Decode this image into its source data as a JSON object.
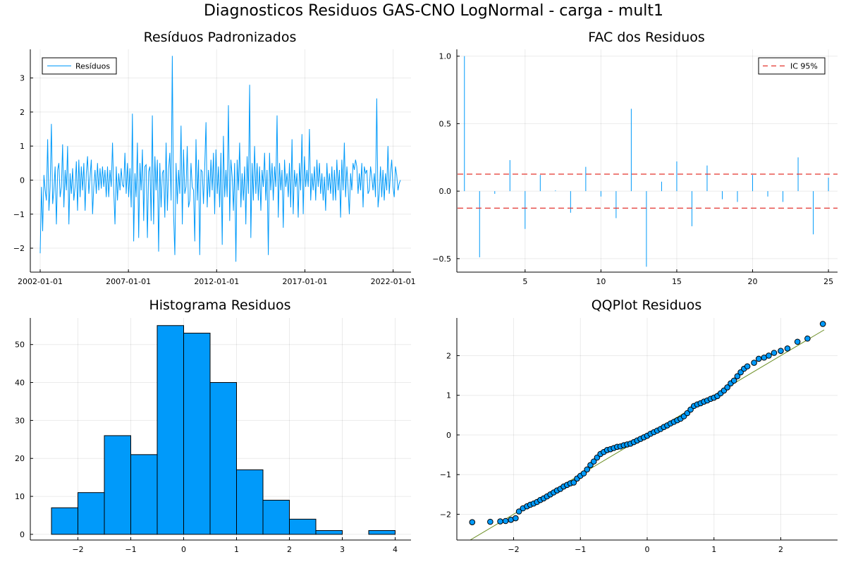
{
  "figure": {
    "suptitle": "Diagnosticos Residuos  GAS-CNO LogNormal - carga - mult1"
  },
  "colors": {
    "primary": "#009AFA",
    "ci": "#E26F46",
    "qqline": "#6B8E23",
    "ci_line": "#E3342F"
  },
  "chart_data": [
    {
      "type": "line",
      "title": "Resíduos Padronizados",
      "legend": {
        "entries": [
          "Resíduos"
        ],
        "placement": "top-left"
      },
      "x_ticks": [
        "2002-01-01",
        "2007-01-01",
        "2012-01-01",
        "2017-01-01",
        "2022-01-01"
      ],
      "x_range": [
        "2002-01-01",
        "2022-06-01"
      ],
      "ylim": [
        -2.6,
        3.8
      ],
      "y_ticks": [
        -2,
        -1,
        0,
        1,
        2,
        3
      ],
      "series": [
        {
          "name": "Resíduos",
          "values": [
            -2.15,
            -0.2,
            -1.5,
            0.15,
            -0.3,
            -0.6,
            1.2,
            -0.9,
            -0.2,
            1.65,
            -0.7,
            -0.3,
            0.4,
            -1.3,
            0.3,
            0.5,
            -0.5,
            -0.2,
            1.05,
            -0.8,
            0.3,
            -0.3,
            1.0,
            -1.3,
            0.2,
            -0.4,
            0.35,
            -0.6,
            -0.2,
            0.55,
            -0.9,
            0.6,
            -0.5,
            0.4,
            -0.3,
            0.5,
            -0.9,
            0.2,
            0.7,
            -0.4,
            0.1,
            0.6,
            -1.0,
            -0.2,
            0.3,
            -0.4,
            0.5,
            -0.3,
            0.35,
            -0.25,
            0.4,
            -0.2,
            0.3,
            -0.5,
            0.4,
            -0.5,
            0.3,
            -0.2,
            1.1,
            -0.3,
            -1.3,
            0.4,
            -0.6,
            0.2,
            -0.3,
            0.35,
            -0.15,
            -0.2,
            0.8,
            -0.4,
            0.5,
            -0.5,
            0.35,
            -0.8,
            1.95,
            -1.8,
            0.2,
            -0.5,
            1.1,
            -1.7,
            0.5,
            -0.3,
            0.9,
            -1.2,
            0.4,
            0.45,
            -1.7,
            0.25,
            0.4,
            -1.2,
            1.9,
            -1.3,
            0.7,
            -0.3,
            0.6,
            -2.1,
            0.5,
            -0.8,
            0.2,
            0.3,
            -1.1,
            1.1,
            -0.9,
            0.3,
            0.8,
            -0.6,
            3.65,
            -1.0,
            -2.2,
            0.5,
            -0.7,
            0.3,
            -0.4,
            1.6,
            -1.3,
            0.9,
            -0.4,
            -0.2,
            1.0,
            -0.8,
            -0.6,
            0.5,
            -0.2,
            -0.3,
            -1.8,
            1.2,
            -0.6,
            0.6,
            -2.2,
            0.3,
            0.25,
            -0.7,
            0.4,
            1.7,
            -0.8,
            0.3,
            -0.5,
            0.6,
            -0.3,
            0.8,
            -1.0,
            0.9,
            -0.4,
            0.4,
            -0.8,
            0.8,
            -1.9,
            1.3,
            -0.5,
            0.3,
            -0.5,
            2.2,
            -1.2,
            0.6,
            0.1,
            -0.9,
            0.5,
            -2.4,
            0.6,
            -0.3,
            1.1,
            -0.8,
            0.2,
            -0.6,
            0.4,
            -1.3,
            0.7,
            -0.4,
            2.8,
            -1.7,
            0.5,
            -0.6,
            1.0,
            -0.4,
            0.5,
            -0.6,
            0.4,
            -0.9,
            0.3,
            -0.2,
            0.8,
            -0.6,
            0.3,
            -2.2,
            0.8,
            -0.3,
            0.5,
            -0.6,
            0.4,
            -0.2,
            1.9,
            -1.1,
            0.5,
            -0.3,
            0.3,
            -1.4,
            0.6,
            -0.2,
            0.2,
            -0.5,
            0.5,
            -0.8,
            1.2,
            -1.0,
            0.3,
            -0.2,
            0.2,
            -1.1,
            0.5,
            -0.3,
            1.35,
            -1.0,
            0.7,
            -0.2,
            0.3,
            -0.2,
            1.5,
            -0.6,
            0.2,
            -0.3,
            0.4,
            -0.6,
            0.6,
            -0.2,
            0.5,
            -0.4,
            0.2,
            -0.6,
            0.1,
            -0.9,
            0.5,
            -0.3,
            0.2,
            -0.4,
            0.4,
            -0.6,
            0.3,
            -0.6,
            0.6,
            -0.3,
            0.3,
            -1.1,
            0.6,
            -0.3,
            1.1,
            -0.5,
            0.4,
            -0.2,
            -1.0,
            0.2,
            -0.3,
            0.5,
            0.3,
            0.6,
            0.4,
            -0.4,
            0.2,
            -0.3,
            0.5,
            -0.8,
            0.4,
            0.2,
            0.3,
            -0.4,
            -0.3,
            0.4,
            0.1,
            -0.3,
            0.2,
            -0.5,
            2.4,
            -0.8,
            -0.4,
            0.4,
            -0.5,
            0.3,
            -0.6,
            0.2,
            -0.3,
            1.0,
            -0.4,
            0.2,
            0.6,
            -0.2,
            -0.5,
            0.4,
            0.15,
            -0.3,
            -0.1,
            0.0
          ]
        }
      ]
    },
    {
      "type": "bar",
      "title": "FAC dos Residuos",
      "legend": {
        "entries": [
          "IC 95%"
        ],
        "placement": "top-right"
      },
      "x": [
        1,
        2,
        3,
        4,
        5,
        6,
        7,
        8,
        9,
        10,
        11,
        12,
        13,
        14,
        15,
        16,
        17,
        18,
        19,
        20,
        21,
        22,
        23,
        24,
        25
      ],
      "values": [
        1.0,
        -0.49,
        -0.02,
        0.23,
        -0.28,
        0.12,
        0.005,
        -0.16,
        0.18,
        -0.04,
        -0.2,
        0.61,
        -0.56,
        0.07,
        0.22,
        -0.26,
        0.19,
        -0.06,
        -0.08,
        0.12,
        -0.04,
        -0.08,
        0.25,
        -0.32,
        0.1
      ],
      "ci": [
        0.126,
        -0.126
      ],
      "xlim": [
        0.5,
        25.6
      ],
      "x_ticks": [
        5,
        10,
        15,
        20,
        25
      ],
      "ylim": [
        -0.6,
        1.04
      ],
      "y_ticks": [
        -0.5,
        0.0,
        0.5,
        1.0
      ],
      "y_tick_labels": [
        "−0.5",
        "0.0",
        "0.5",
        "1.0"
      ]
    },
    {
      "type": "bar",
      "title": "Histograma Residuos",
      "bin_edges": [
        -2.5,
        -2,
        -1.5,
        -1,
        -0.5,
        0,
        0.5,
        1,
        1.5,
        2,
        2.5,
        3,
        3.5,
        4
      ],
      "values": [
        7,
        11,
        26,
        21,
        55,
        53,
        40,
        17,
        9,
        4,
        1,
        0,
        1
      ],
      "xlim": [
        -2.9,
        4.3
      ],
      "x_ticks": [
        -2,
        -1,
        0,
        1,
        2,
        3,
        4
      ],
      "x_tick_labels": [
        "−2",
        "−1",
        "0",
        "1",
        "2",
        "3",
        "4"
      ],
      "ylim": [
        -1.5,
        57
      ],
      "y_ticks": [
        0,
        10,
        20,
        30,
        40,
        50
      ]
    },
    {
      "type": "scatter",
      "title": "QQPlot Residuos",
      "xlim": [
        -2.85,
        2.85
      ],
      "ylim": [
        -2.65,
        2.95
      ],
      "x_ticks": [
        -2,
        -1,
        0,
        1,
        2
      ],
      "x_tick_labels": [
        "−2",
        "−1",
        "0",
        "1",
        "2"
      ],
      "y_ticks": [
        -2,
        -1,
        0,
        1,
        2
      ],
      "y_tick_labels": [
        "−2",
        "−1",
        "0",
        "1",
        "2"
      ],
      "reference_line": [
        [
          -2.65,
          -2.65
        ],
        [
          2.65,
          2.65
        ]
      ],
      "points": [
        [
          -2.62,
          -2.2
        ],
        [
          -2.35,
          -2.19
        ],
        [
          -2.2,
          -2.18
        ],
        [
          -2.12,
          -2.17
        ],
        [
          -2.04,
          -2.14
        ],
        [
          -1.97,
          -2.1
        ],
        [
          -1.92,
          -1.93
        ],
        [
          -1.86,
          -1.85
        ],
        [
          -1.8,
          -1.8
        ],
        [
          -1.75,
          -1.76
        ],
        [
          -1.7,
          -1.73
        ],
        [
          -1.65,
          -1.69
        ],
        [
          -1.6,
          -1.64
        ],
        [
          -1.55,
          -1.6
        ],
        [
          -1.5,
          -1.55
        ],
        [
          -1.45,
          -1.5
        ],
        [
          -1.4,
          -1.45
        ],
        [
          -1.35,
          -1.4
        ],
        [
          -1.3,
          -1.36
        ],
        [
          -1.25,
          -1.3
        ],
        [
          -1.2,
          -1.26
        ],
        [
          -1.15,
          -1.22
        ],
        [
          -1.1,
          -1.2
        ],
        [
          -1.05,
          -1.1
        ],
        [
          -1.0,
          -1.03
        ],
        [
          -0.95,
          -0.97
        ],
        [
          -0.9,
          -0.87
        ],
        [
          -0.85,
          -0.76
        ],
        [
          -0.8,
          -0.67
        ],
        [
          -0.75,
          -0.57
        ],
        [
          -0.7,
          -0.48
        ],
        [
          -0.65,
          -0.43
        ],
        [
          -0.6,
          -0.38
        ],
        [
          -0.55,
          -0.36
        ],
        [
          -0.5,
          -0.33
        ],
        [
          -0.45,
          -0.3
        ],
        [
          -0.4,
          -0.29
        ],
        [
          -0.35,
          -0.26
        ],
        [
          -0.3,
          -0.24
        ],
        [
          -0.25,
          -0.22
        ],
        [
          -0.2,
          -0.18
        ],
        [
          -0.15,
          -0.14
        ],
        [
          -0.1,
          -0.1
        ],
        [
          -0.05,
          -0.06
        ],
        [
          0.0,
          -0.02
        ],
        [
          0.05,
          0.03
        ],
        [
          0.1,
          0.07
        ],
        [
          0.15,
          0.11
        ],
        [
          0.2,
          0.15
        ],
        [
          0.25,
          0.2
        ],
        [
          0.3,
          0.24
        ],
        [
          0.35,
          0.29
        ],
        [
          0.4,
          0.33
        ],
        [
          0.45,
          0.37
        ],
        [
          0.5,
          0.41
        ],
        [
          0.55,
          0.47
        ],
        [
          0.6,
          0.55
        ],
        [
          0.65,
          0.64
        ],
        [
          0.7,
          0.73
        ],
        [
          0.75,
          0.77
        ],
        [
          0.8,
          0.8
        ],
        [
          0.85,
          0.84
        ],
        [
          0.9,
          0.87
        ],
        [
          0.95,
          0.91
        ],
        [
          1.0,
          0.94
        ],
        [
          1.05,
          0.98
        ],
        [
          1.1,
          1.05
        ],
        [
          1.15,
          1.12
        ],
        [
          1.2,
          1.2
        ],
        [
          1.25,
          1.3
        ],
        [
          1.3,
          1.37
        ],
        [
          1.35,
          1.48
        ],
        [
          1.4,
          1.58
        ],
        [
          1.45,
          1.67
        ],
        [
          1.5,
          1.73
        ],
        [
          1.6,
          1.82
        ],
        [
          1.67,
          1.92
        ],
        [
          1.75,
          1.95
        ],
        [
          1.82,
          2.0
        ],
        [
          1.9,
          2.07
        ],
        [
          2.0,
          2.12
        ],
        [
          2.1,
          2.18
        ],
        [
          2.25,
          2.35
        ],
        [
          2.4,
          2.43
        ],
        [
          2.63,
          2.8
        ]
      ]
    }
  ]
}
